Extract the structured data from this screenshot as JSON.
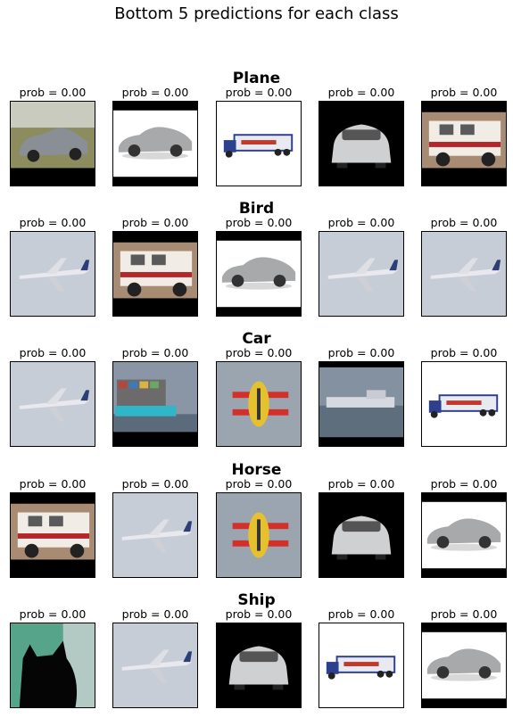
{
  "title": "Bottom 5 predictions for each class",
  "chart_data": {
    "type": "image-grid",
    "title": "Bottom 5 predictions for each class",
    "rows": [
      {
        "class": "Plane",
        "items": [
          {
            "label": "prob = 0.00",
            "subject": "sedan-car"
          },
          {
            "label": "prob = 0.00",
            "subject": "sports-car"
          },
          {
            "label": "prob = 0.00",
            "subject": "truck"
          },
          {
            "label": "prob = 0.00",
            "subject": "sports-car-front"
          },
          {
            "label": "prob = 0.00",
            "subject": "fire-truck"
          }
        ]
      },
      {
        "class": "Bird",
        "items": [
          {
            "label": "prob = 0.00",
            "subject": "airplane"
          },
          {
            "label": "prob = 0.00",
            "subject": "fire-truck"
          },
          {
            "label": "prob = 0.00",
            "subject": "sports-car"
          },
          {
            "label": "prob = 0.00",
            "subject": "airplane"
          },
          {
            "label": "prob = 0.00",
            "subject": "airplane"
          }
        ]
      },
      {
        "class": "Car",
        "items": [
          {
            "label": "prob = 0.00",
            "subject": "airplane"
          },
          {
            "label": "prob = 0.00",
            "subject": "container-ship"
          },
          {
            "label": "prob = 0.00",
            "subject": "biplane"
          },
          {
            "label": "prob = 0.00",
            "subject": "ship"
          },
          {
            "label": "prob = 0.00",
            "subject": "truck"
          }
        ]
      },
      {
        "class": "Horse",
        "items": [
          {
            "label": "prob = 0.00",
            "subject": "fire-truck"
          },
          {
            "label": "prob = 0.00",
            "subject": "airplane"
          },
          {
            "label": "prob = 0.00",
            "subject": "biplane"
          },
          {
            "label": "prob = 0.00",
            "subject": "sports-car-front"
          },
          {
            "label": "prob = 0.00",
            "subject": "sports-car"
          }
        ]
      },
      {
        "class": "Ship",
        "items": [
          {
            "label": "prob = 0.00",
            "subject": "cat"
          },
          {
            "label": "prob = 0.00",
            "subject": "airplane"
          },
          {
            "label": "prob = 0.00",
            "subject": "sports-car-front"
          },
          {
            "label": "prob = 0.00",
            "subject": "truck"
          },
          {
            "label": "prob = 0.00",
            "subject": "sports-car"
          }
        ]
      }
    ]
  }
}
